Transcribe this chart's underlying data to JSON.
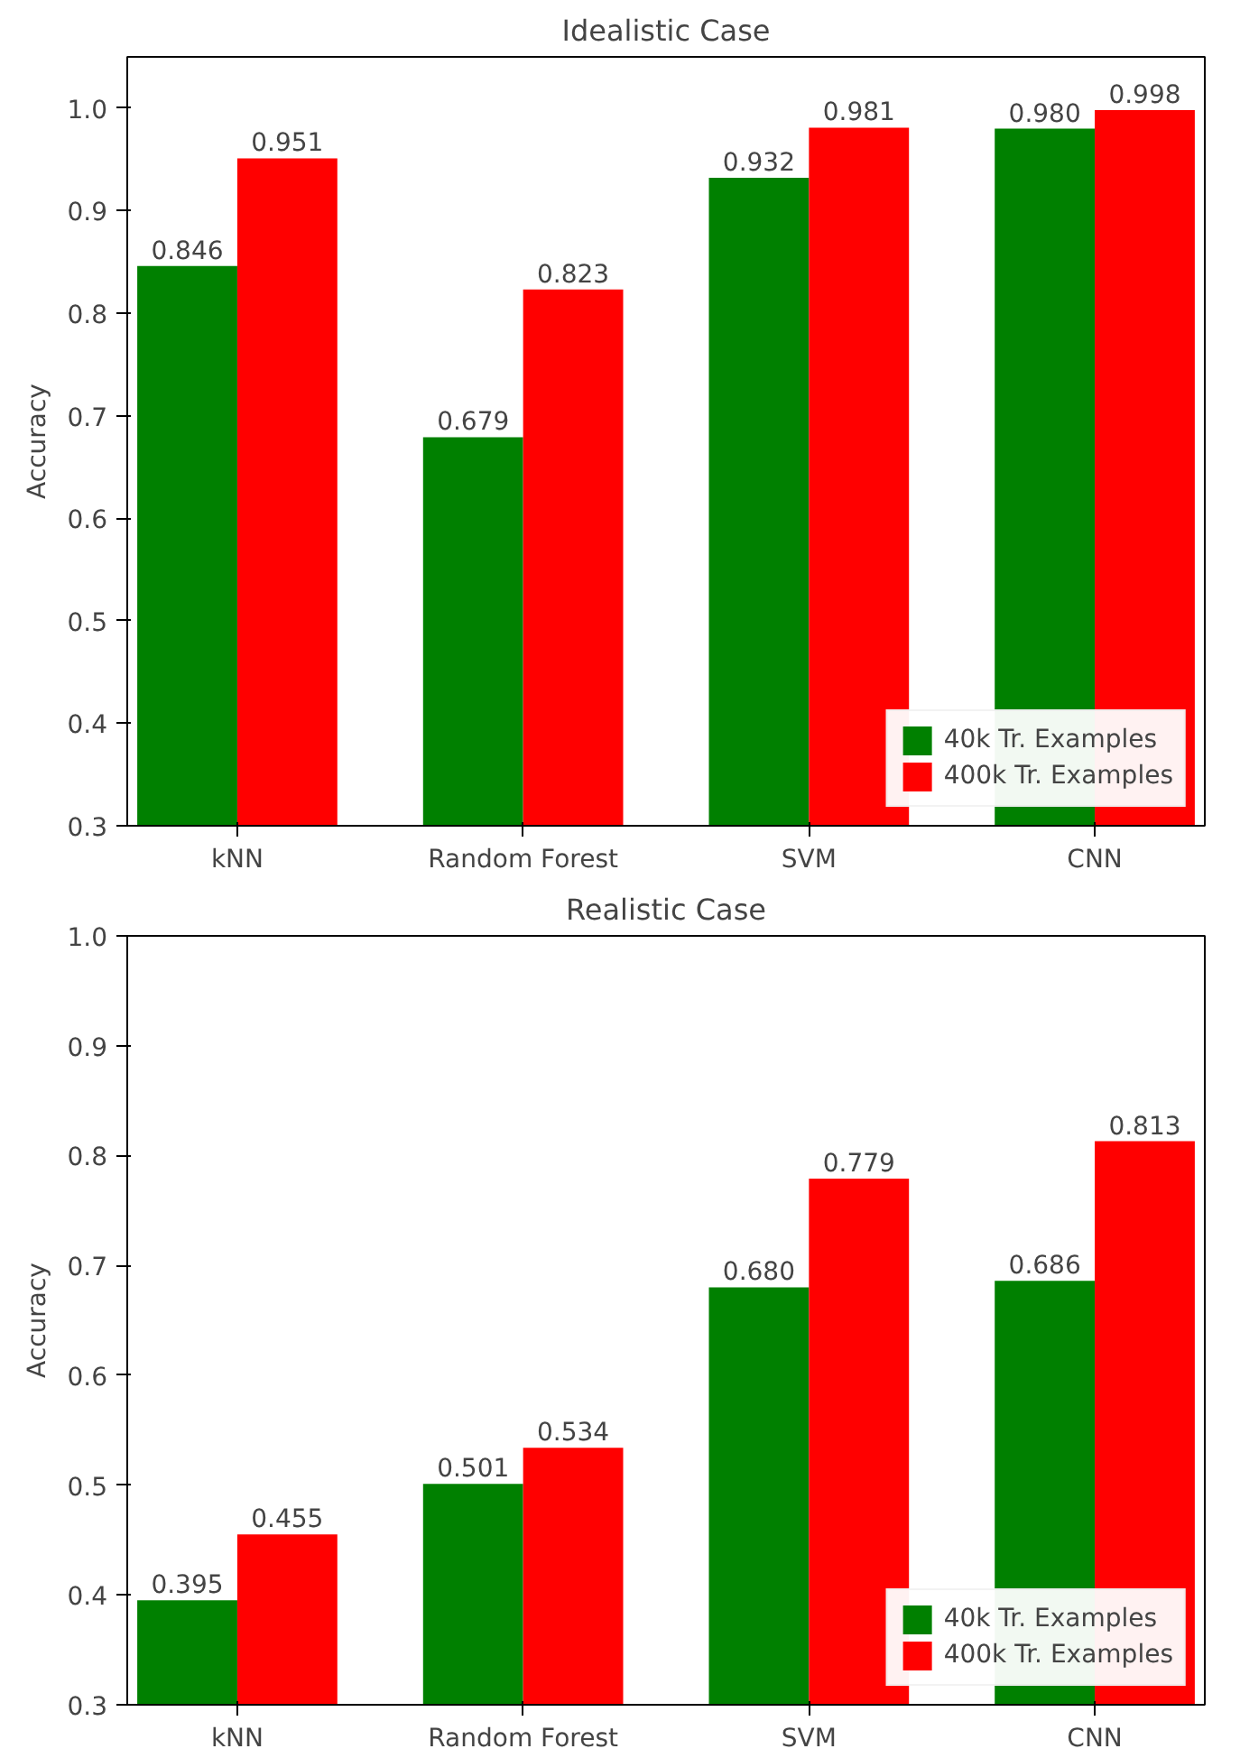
{
  "chart_data": [
    {
      "type": "bar",
      "title": "Idealistic Case",
      "ylabel": "Accuracy",
      "categories": [
        "kNN",
        "Random Forest",
        "SVM",
        "CNN"
      ],
      "series": [
        {
          "name": "40k Tr. Examples",
          "color": "#008000",
          "values": [
            0.846,
            0.679,
            0.932,
            0.98
          ],
          "value_labels": [
            "0.846",
            "0.679",
            "0.932",
            "0.980"
          ]
        },
        {
          "name": "400k Tr. Examples",
          "color": "#ff0000",
          "values": [
            0.951,
            0.823,
            0.981,
            0.998
          ],
          "value_labels": [
            "0.951",
            "0.823",
            "0.981",
            "0.998"
          ]
        }
      ],
      "ylim": [
        0.3,
        1.05
      ],
      "yticks": [
        0.3,
        0.4,
        0.5,
        0.6,
        0.7,
        0.8,
        0.9,
        {
          "value": 1,
          "label": "1.0"
        }
      ],
      "legend": "bottom right",
      "grid": false
    },
    {
      "type": "bar",
      "title": "Realistic Case",
      "ylabel": "Accuracy",
      "categories": [
        "kNN",
        "Random Forest",
        "SVM",
        "CNN"
      ],
      "series": [
        {
          "name": "40k Tr. Examples",
          "color": "#008000",
          "values": [
            0.395,
            0.501,
            0.68,
            0.686
          ],
          "value_labels": [
            "0.395",
            "0.501",
            "0.680",
            "0.686"
          ]
        },
        {
          "name": "400k Tr. Examples",
          "color": "#ff0000",
          "values": [
            0.455,
            0.534,
            0.779,
            0.813
          ],
          "value_labels": [
            "0.455",
            "0.534",
            "0.779",
            "0.813"
          ]
        }
      ],
      "ylim": [
        0.3,
        1.0
      ],
      "yticks": [
        0.3,
        0.4,
        0.5,
        0.6,
        0.7,
        0.8,
        0.9,
        {
          "value": 1,
          "label": "1.0"
        }
      ],
      "legend": "bottom right",
      "grid": false
    }
  ]
}
